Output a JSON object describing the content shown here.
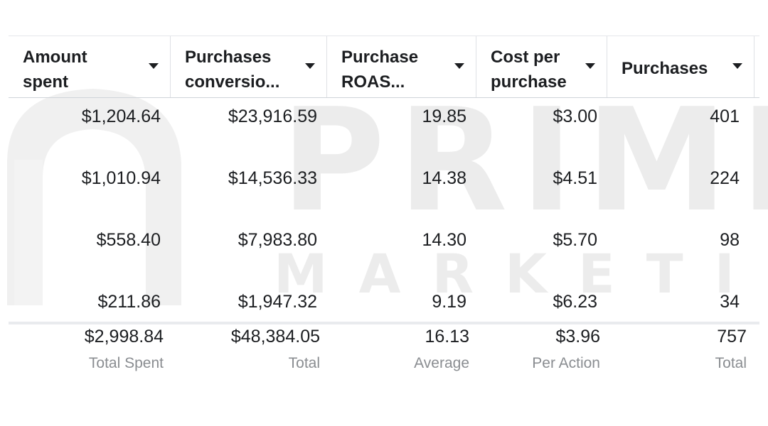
{
  "watermark": {
    "line1": "PRIME",
    "line2": "MARKETING"
  },
  "columns": [
    {
      "label": "Amount\nspent"
    },
    {
      "label": "Purchases\nconversio..."
    },
    {
      "label": "Purchase\nROAS..."
    },
    {
      "label": "Cost per\npurchase"
    },
    {
      "label": "Purchases"
    }
  ],
  "rows": [
    [
      "$1,204.64",
      "$23,916.59",
      "19.85",
      "$3.00",
      "401"
    ],
    [
      "$1,010.94",
      "$14,536.33",
      "14.38",
      "$4.51",
      "224"
    ],
    [
      "$558.40",
      "$7,983.80",
      "14.30",
      "$5.70",
      "98"
    ],
    [
      "$211.86",
      "$1,947.32",
      "9.19",
      "$6.23",
      "34"
    ]
  ],
  "totals": [
    {
      "value": "$2,998.84",
      "label": "Total Spent"
    },
    {
      "value": "$48,384.05",
      "label": "Total"
    },
    {
      "value": "16.13",
      "label": "Average"
    },
    {
      "value": "$3.96",
      "label": "Per Action"
    },
    {
      "value": "757",
      "label": "Total"
    }
  ]
}
